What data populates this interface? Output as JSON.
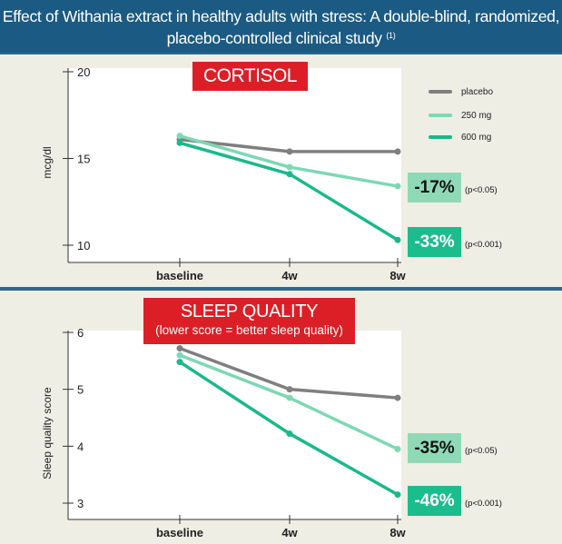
{
  "header": {
    "line1": "Effect of Withania extract in healthy adults with stress: A double-blind, randomized,",
    "line2": "placebo-controlled clinical study",
    "ref": "(1)"
  },
  "colors": {
    "header_bg": "#1b5a82",
    "banner_red": "#dc1f26",
    "placebo": "#7f7f7f",
    "mg250": "#7dd8b4",
    "mg600": "#19b98a",
    "panel_bg": "#efeee4"
  },
  "cortisol": {
    "banner": "CORTISOL",
    "ylabel": "mcg/dl",
    "badges": [
      {
        "text": "-17%",
        "p": "(p<0.05)"
      },
      {
        "text": "-33%",
        "p": "(p<0.001)"
      }
    ]
  },
  "sleep": {
    "banner": "SLEEP QUALITY",
    "banner_sub": "(lower score = better sleep quality)",
    "ylabel": "Sleep quality score",
    "badges": [
      {
        "text": "-35%",
        "p": "(p<0.05)"
      },
      {
        "text": "-46%",
        "p": "(p<0.001)"
      }
    ]
  },
  "legend": [
    {
      "name": "placebo",
      "color": "#7f7f7f"
    },
    {
      "name": "250 mg",
      "color": "#7dd8b4"
    },
    {
      "name": "600 mg",
      "color": "#19b98a"
    }
  ],
  "chart_data": [
    {
      "type": "line",
      "title": "CORTISOL",
      "xlabel": "",
      "ylabel": "mcg/dl",
      "categories": [
        "baseline",
        "4w",
        "8w"
      ],
      "ylim": [
        10,
        20
      ],
      "yticks": [
        10,
        15,
        20
      ],
      "legend_position": "top-right",
      "series": [
        {
          "name": "placebo",
          "color": "#7f7f7f",
          "values": [
            16.1,
            15.4,
            15.4
          ]
        },
        {
          "name": "250 mg",
          "color": "#7dd8b4",
          "values": [
            16.3,
            14.5,
            13.4
          ]
        },
        {
          "name": "600 mg",
          "color": "#19b98a",
          "values": [
            15.9,
            14.1,
            10.3
          ]
        }
      ]
    },
    {
      "type": "line",
      "title": "SLEEP QUALITY",
      "subtitle": "(lower score = better sleep quality)",
      "xlabel": "",
      "ylabel": "Sleep quality score",
      "categories": [
        "baseline",
        "4w",
        "8w"
      ],
      "ylim": [
        3,
        6
      ],
      "yticks": [
        3,
        4,
        5,
        6
      ],
      "series": [
        {
          "name": "placebo",
          "color": "#7f7f7f",
          "values": [
            5.72,
            5.0,
            4.85
          ]
        },
        {
          "name": "250 mg",
          "color": "#7dd8b4",
          "values": [
            5.6,
            4.85,
            3.95
          ]
        },
        {
          "name": "600 mg",
          "color": "#19b98a",
          "values": [
            5.48,
            4.22,
            3.15
          ]
        }
      ]
    }
  ]
}
